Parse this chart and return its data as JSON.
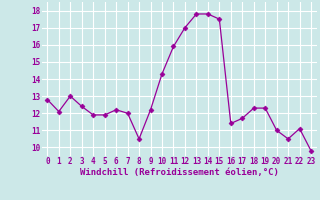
{
  "x": [
    0,
    1,
    2,
    3,
    4,
    5,
    6,
    7,
    8,
    9,
    10,
    11,
    12,
    13,
    14,
    15,
    16,
    17,
    18,
    19,
    20,
    21,
    22,
    23
  ],
  "y": [
    12.8,
    12.1,
    13.0,
    12.4,
    11.9,
    11.9,
    12.2,
    12.0,
    10.5,
    12.2,
    14.3,
    15.9,
    17.0,
    17.8,
    17.8,
    17.5,
    11.4,
    11.7,
    12.3,
    12.3,
    11.0,
    10.5,
    11.1,
    9.8
  ],
  "line_color": "#990099",
  "marker": "D",
  "marker_size": 2.5,
  "bg_color": "#cce8e8",
  "grid_color": "#ffffff",
  "xlabel": "Windchill (Refroidissement éolien,°C)",
  "ylabel_ticks": [
    10,
    11,
    12,
    13,
    14,
    15,
    16,
    17,
    18
  ],
  "xtick_labels": [
    "0",
    "1",
    "2",
    "3",
    "4",
    "5",
    "6",
    "7",
    "8",
    "9",
    "10",
    "11",
    "12",
    "13",
    "14",
    "15",
    "16",
    "17",
    "18",
    "19",
    "20",
    "21",
    "22",
    "23"
  ],
  "xlim": [
    -0.5,
    23.5
  ],
  "ylim": [
    9.5,
    18.5
  ],
  "tick_fontsize": 5.5,
  "xlabel_fontsize": 6.5,
  "xlabel_color": "#990099"
}
